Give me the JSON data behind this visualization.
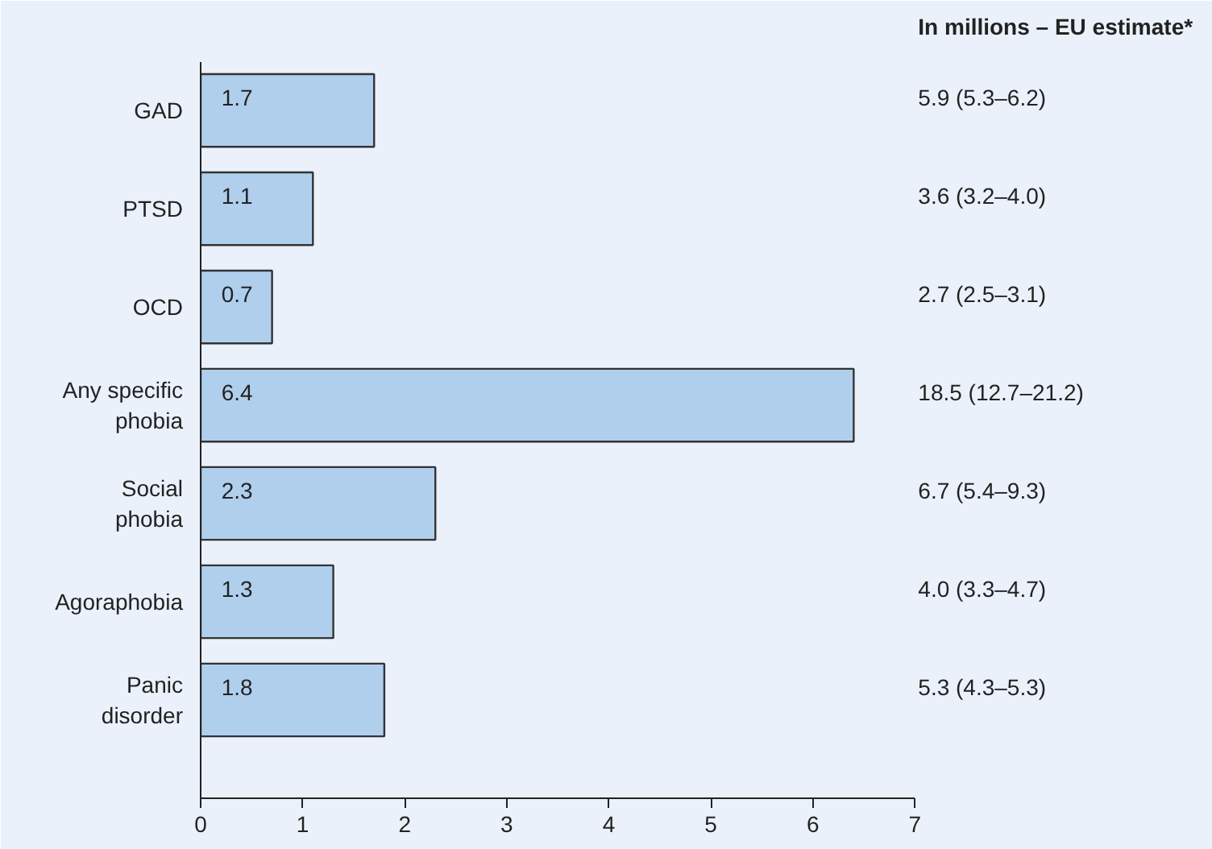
{
  "chart_data": {
    "type": "bar",
    "orientation": "horizontal",
    "categories": [
      "GAD",
      "PTSD",
      "OCD",
      "Any specific phobia",
      "Social phobia",
      "Agoraphobia",
      "Panic disorder"
    ],
    "values": [
      1.7,
      1.1,
      0.7,
      6.4,
      2.3,
      1.3,
      1.8
    ],
    "color": "#b0cfed",
    "data_labels": true,
    "xlim": [
      0,
      7
    ],
    "xticks": [
      0,
      1,
      2,
      3,
      4,
      5,
      6,
      7
    ],
    "grid": false,
    "annotations": [
      "In millions – EU estimate*",
      "5.9 (5.3–6.2)",
      "3.6 (3.2–4.0)",
      "2.7 (2.5–3.1)",
      "18.5 (12.7–21.2)",
      "6.7 (5.4–9.3)",
      "4.0 (3.3–4.7)",
      "5.3 (4.3–5.3)"
    ]
  }
}
